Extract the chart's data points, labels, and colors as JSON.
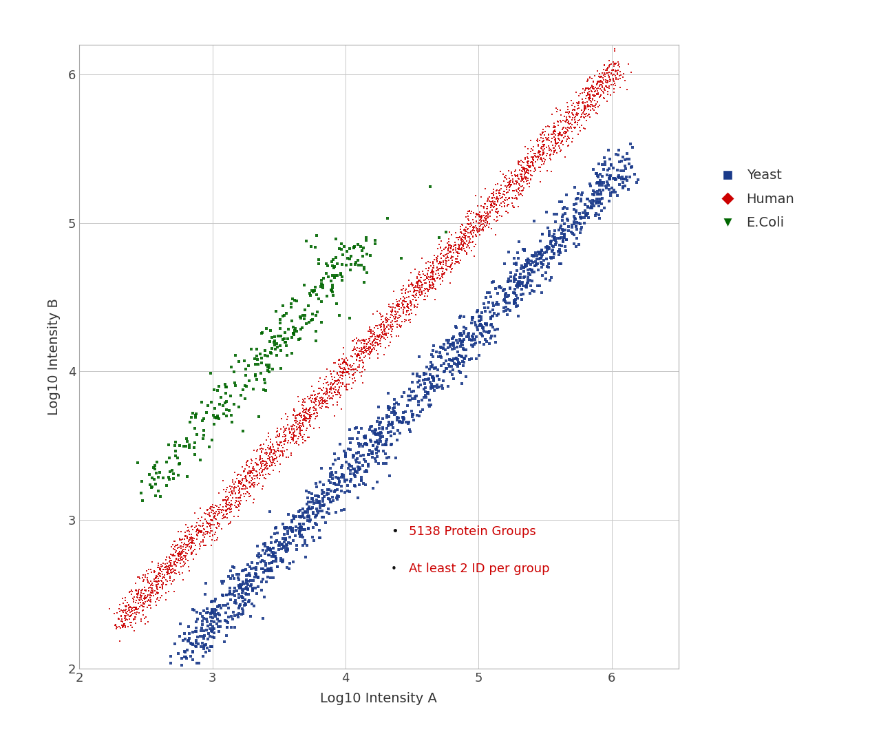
{
  "title": "",
  "xlabel": "Log10 Intensity A",
  "ylabel": "Log10 Intensity B",
  "xlim": [
    2,
    6.5
  ],
  "ylim": [
    2,
    6.2
  ],
  "xticks": [
    2,
    3,
    4,
    5,
    6
  ],
  "yticks": [
    2,
    3,
    4,
    5,
    6
  ],
  "background_color": "#ffffff",
  "grid_color": "#c8c8c8",
  "annotation_text1": "5138 Protein Groups",
  "annotation_text2": "At least 2 ID per group",
  "annotation_color": "#cc0000",
  "legend_entries": [
    "Yeast",
    "Human",
    "E.Coli"
  ],
  "legend_colors": [
    "#1a3a8a",
    "#cc0000",
    "#006600"
  ],
  "yeast_color": "#1a3a8a",
  "human_color": "#cc0000",
  "ecoli_color": "#006600",
  "yeast_n": 1500,
  "human_n": 3200,
  "ecoli_n": 280,
  "seed": 42
}
